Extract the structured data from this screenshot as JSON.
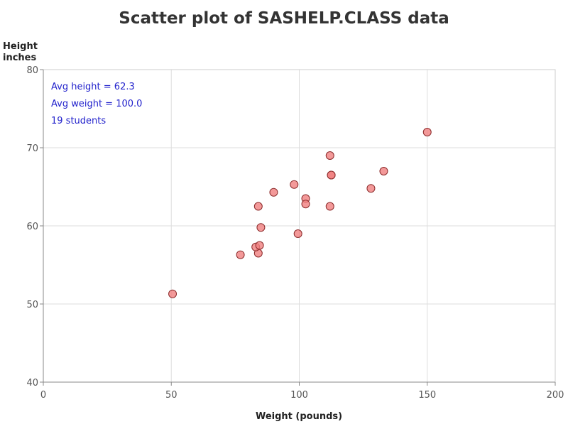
{
  "chart_data": {
    "type": "scatter",
    "title": "Scatter plot of SASHELP.CLASS data",
    "xlabel": "Weight (pounds)",
    "ylabel": [
      "Height",
      "inches"
    ],
    "xlim": [
      0,
      200
    ],
    "ylim": [
      40,
      80
    ],
    "xticks": [
      0,
      50,
      100,
      150,
      200
    ],
    "yticks": [
      40,
      50,
      60,
      70,
      80
    ],
    "grid": true,
    "annotations": [
      "Avg height = 62.3",
      "Avg weight = 100.0",
      "19 students"
    ],
    "marker_fill": "#f08080",
    "marker_stroke": "#8b2a2a",
    "annotation_color": "#2222cc",
    "points": [
      {
        "x": 50.5,
        "y": 51.3
      },
      {
        "x": 77.0,
        "y": 56.3
      },
      {
        "x": 84.0,
        "y": 56.5
      },
      {
        "x": 83.0,
        "y": 57.3
      },
      {
        "x": 84.5,
        "y": 57.5
      },
      {
        "x": 84.0,
        "y": 62.5
      },
      {
        "x": 85.0,
        "y": 59.8
      },
      {
        "x": 90.0,
        "y": 64.3
      },
      {
        "x": 98.0,
        "y": 65.3
      },
      {
        "x": 99.5,
        "y": 59.0
      },
      {
        "x": 102.5,
        "y": 63.5
      },
      {
        "x": 102.5,
        "y": 62.8
      },
      {
        "x": 112.0,
        "y": 62.5
      },
      {
        "x": 112.5,
        "y": 66.5
      },
      {
        "x": 112.5,
        "y": 66.5
      },
      {
        "x": 112.0,
        "y": 69.0
      },
      {
        "x": 128.0,
        "y": 64.8
      },
      {
        "x": 133.0,
        "y": 67.0
      },
      {
        "x": 150.0,
        "y": 72.0
      }
    ]
  }
}
